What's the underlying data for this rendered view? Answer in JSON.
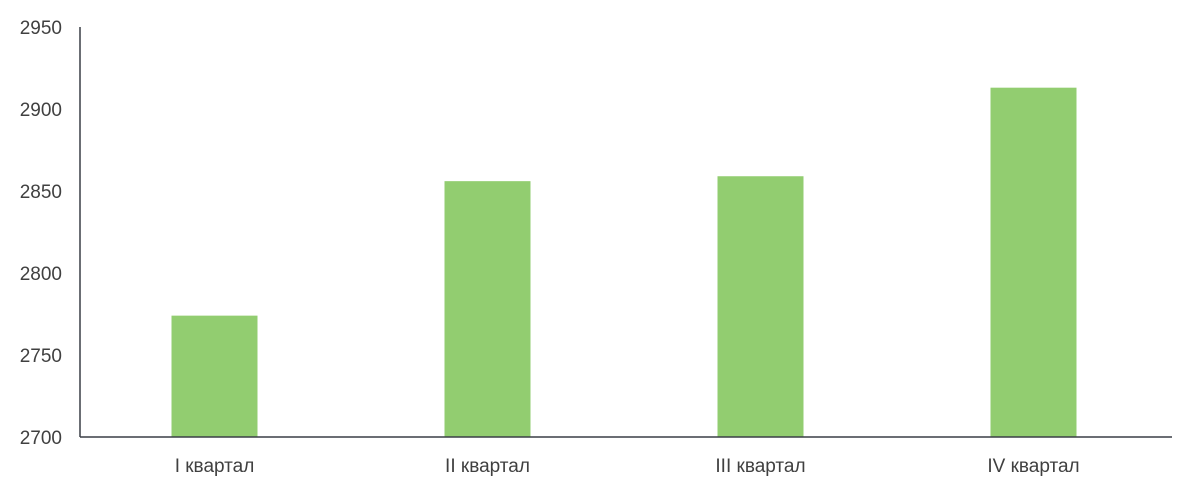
{
  "chart_data": {
    "type": "bar",
    "categories": [
      "I квартал",
      "II квартал",
      "III квартал",
      "IV квартал"
    ],
    "values": [
      2774,
      2856,
      2859,
      2913
    ],
    "ylim": [
      2700,
      2950
    ],
    "yticks": [
      2700,
      2750,
      2800,
      2850,
      2900,
      2950
    ],
    "ytick_labels": [
      "2700",
      "2750",
      "2800",
      "2850",
      "2900",
      "2950"
    ],
    "grid": false,
    "legend": "none",
    "title": "",
    "xlabel": "",
    "ylabel": "",
    "colors": {
      "bar": "#92CD70",
      "axis": "#3A3F47",
      "text": "#404040"
    }
  }
}
